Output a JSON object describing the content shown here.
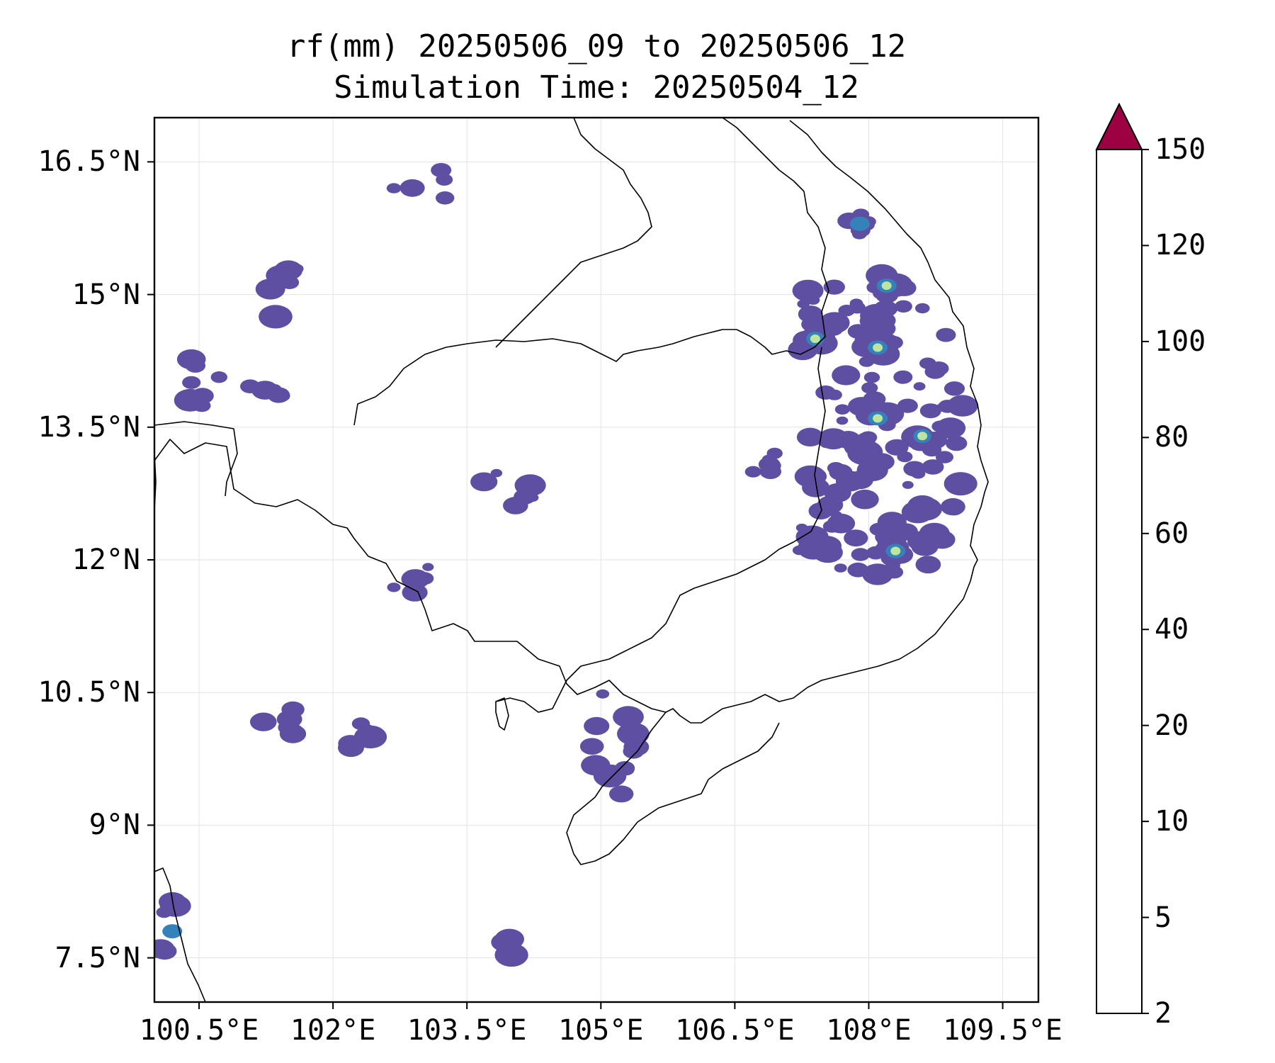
{
  "title": {
    "line1": "rf(mm) 20250506_09 to 20250506_12",
    "line2": "Simulation Time: 20250504_12"
  },
  "map": {
    "extent": {
      "lon_min": 100.0,
      "lon_max": 109.9,
      "lat_min": 7.0,
      "lat_max": 17.0
    },
    "grid": true,
    "lon_ticks": [
      100.5,
      102,
      103.5,
      105,
      106.5,
      108,
      109.5
    ],
    "lon_labels": [
      "100.5°E",
      "102°E",
      "103.5°E",
      "105°E",
      "106.5°E",
      "108°E",
      "109.5°E"
    ],
    "lat_ticks": [
      16.5,
      15,
      13.5,
      12,
      10.5,
      9,
      7.5
    ],
    "lat_labels": [
      "16.5°N",
      "15°N",
      "13.5°N",
      "12°N",
      "10.5°N",
      "9°N",
      "7.5°N"
    ]
  },
  "colorbar": {
    "levels": [
      2,
      5,
      10,
      20,
      40,
      60,
      80,
      100,
      120,
      150
    ],
    "labels": [
      "2",
      "5",
      "10",
      "20",
      "40",
      "60",
      "80",
      "100",
      "120",
      "150"
    ],
    "colors": [
      "#5e4fa2",
      "#4f61aa",
      "#3582bb",
      "#61bea6",
      "#bde5a0",
      "#f2f9ad",
      "#fddd89",
      "#f8a05a",
      "#d5434f",
      "#9e0142"
    ],
    "extend": "max"
  },
  "rain_fields": [
    {
      "lon": 108.2,
      "lat": 13.4,
      "w": 1.8,
      "h": 3.6,
      "level": 1
    },
    {
      "lon": 107.6,
      "lat": 14.7,
      "w": 1.2,
      "h": 0.8,
      "level": 1
    },
    {
      "lon": 107.9,
      "lat": 12.2,
      "w": 1.5,
      "h": 0.8,
      "level": 1
    },
    {
      "lon": 106.9,
      "lat": 13.0,
      "w": 0.6,
      "h": 0.5,
      "level": 1
    },
    {
      "lon": 105.1,
      "lat": 9.9,
      "w": 0.6,
      "h": 1.4,
      "level": 1
    },
    {
      "lon": 102.9,
      "lat": 11.8,
      "w": 0.6,
      "h": 0.4,
      "level": 1
    },
    {
      "lon": 104.0,
      "lat": 12.8,
      "w": 0.8,
      "h": 0.5,
      "level": 1
    },
    {
      "lon": 100.4,
      "lat": 14.0,
      "w": 0.7,
      "h": 0.7,
      "level": 1
    },
    {
      "lon": 101.5,
      "lat": 15.0,
      "w": 0.8,
      "h": 0.6,
      "level": 1
    },
    {
      "lon": 101.3,
      "lat": 14.0,
      "w": 0.7,
      "h": 0.6,
      "level": 1
    },
    {
      "lon": 103.0,
      "lat": 16.2,
      "w": 0.8,
      "h": 0.5,
      "level": 1
    },
    {
      "lon": 100.2,
      "lat": 7.8,
      "w": 0.35,
      "h": 0.7,
      "level": 2
    },
    {
      "lon": 103.9,
      "lat": 7.6,
      "w": 0.3,
      "h": 0.3,
      "level": 1
    },
    {
      "lon": 101.4,
      "lat": 10.2,
      "w": 0.5,
      "h": 0.5,
      "level": 1
    },
    {
      "lon": 102.3,
      "lat": 10.0,
      "w": 0.5,
      "h": 0.5,
      "level": 1
    },
    {
      "lon": 108.1,
      "lat": 14.4,
      "w": 0.4,
      "h": 0.4,
      "level": 3
    },
    {
      "lon": 108.1,
      "lat": 13.6,
      "w": 0.3,
      "h": 0.3,
      "level": 3
    },
    {
      "lon": 108.3,
      "lat": 12.1,
      "w": 0.3,
      "h": 0.2,
      "level": 3
    },
    {
      "lon": 107.4,
      "lat": 14.5,
      "w": 0.2,
      "h": 0.2,
      "level": 3
    },
    {
      "lon": 108.6,
      "lat": 13.4,
      "w": 0.2,
      "h": 0.2,
      "level": 3
    },
    {
      "lon": 107.9,
      "lat": 15.8,
      "w": 0.3,
      "h": 0.3,
      "level": 2
    },
    {
      "lon": 108.2,
      "lat": 15.1,
      "w": 0.3,
      "h": 0.3,
      "level": 3
    }
  ]
}
